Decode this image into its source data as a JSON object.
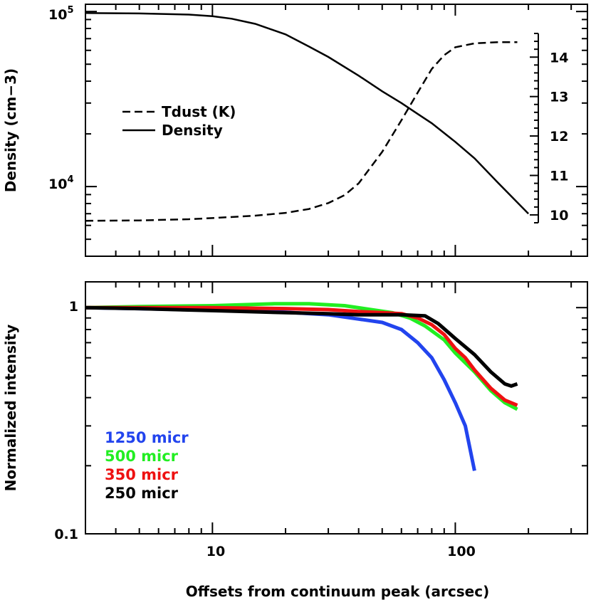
{
  "chart_data": [
    {
      "type": "line",
      "xscale": "log",
      "yscale": "log",
      "xlim": [
        3,
        350
      ],
      "ylim": [
        4000,
        110000
      ],
      "ylabel": "Density (cm−3)",
      "ytick_labels": [
        {
          "base": "10",
          "exp": "4",
          "value": 10000
        },
        {
          "base": "10",
          "exp": "5",
          "value": 100000
        }
      ],
      "right_axis": {
        "ylim": [
          9.8,
          14.6
        ],
        "tick_labels": [
          "10",
          "11",
          "12",
          "13",
          "14"
        ],
        "tick_values": [
          10,
          11,
          12,
          13,
          14
        ]
      },
      "legend": {
        "position": "center-left",
        "entries": [
          {
            "label": "Tdust (K)",
            "style": "dashed"
          },
          {
            "label": "Density",
            "style": "solid"
          }
        ]
      },
      "series": [
        {
          "name": "Density",
          "style": "solid",
          "axis": "left",
          "x": [
            3,
            5,
            8,
            10,
            12,
            15,
            20,
            25,
            30,
            40,
            50,
            60,
            70,
            80,
            100,
            120,
            150,
            200
          ],
          "y": [
            98000,
            97500,
            96000,
            94000,
            91000,
            85000,
            74000,
            63000,
            55000,
            43000,
            35000,
            30000,
            26000,
            23000,
            18000,
            14500,
            10500,
            7000
          ]
        },
        {
          "name": "Tdust (K)",
          "style": "dashed",
          "axis": "right",
          "x": [
            3,
            5,
            8,
            10,
            15,
            20,
            25,
            30,
            35,
            40,
            50,
            60,
            70,
            80,
            90,
            100,
            120,
            150,
            180
          ],
          "y": [
            9.85,
            9.86,
            9.89,
            9.92,
            9.98,
            10.05,
            10.15,
            10.3,
            10.5,
            10.8,
            11.6,
            12.4,
            13.1,
            13.7,
            14.05,
            14.25,
            14.35,
            14.38,
            14.38
          ]
        }
      ]
    },
    {
      "type": "line",
      "xscale": "log",
      "yscale": "log",
      "xlim": [
        3,
        350
      ],
      "ylim": [
        0.1,
        1.3
      ],
      "xlabel": "Offsets from continuum peak (arcsec)",
      "ylabel": "Normalized intensity",
      "xtick_labels": [
        {
          "label": "10",
          "value": 10
        },
        {
          "label": "100",
          "value": 100
        }
      ],
      "ytick_labels": [
        {
          "label": "1",
          "value": 1
        },
        {
          "label": "0.1",
          "value": 0.1
        }
      ],
      "legend": {
        "position": "bottom-left",
        "entries": [
          {
            "label": "1250 micr",
            "color": "#2244ee"
          },
          {
            "label": "500 micr",
            "color": "#22ee22"
          },
          {
            "label": "350 micr",
            "color": "#ee1111"
          },
          {
            "label": "250 micr",
            "color": "#000000"
          }
        ]
      },
      "series": [
        {
          "name": "1250 micr",
          "color": "#2244ee",
          "x": [
            3,
            5,
            10,
            20,
            30,
            40,
            50,
            60,
            70,
            80,
            90,
            100,
            110,
            120
          ],
          "y": [
            1.0,
            0.99,
            0.975,
            0.955,
            0.93,
            0.89,
            0.86,
            0.8,
            0.7,
            0.6,
            0.48,
            0.38,
            0.3,
            0.19
          ]
        },
        {
          "name": "500 micr",
          "color": "#22ee22",
          "x": [
            3,
            5,
            10,
            18,
            25,
            35,
            45,
            55,
            65,
            75,
            90,
            100,
            120,
            140,
            160,
            180
          ],
          "y": [
            1.0,
            1.01,
            1.02,
            1.04,
            1.04,
            1.02,
            0.98,
            0.95,
            0.9,
            0.83,
            0.72,
            0.63,
            0.52,
            0.43,
            0.38,
            0.355
          ]
        },
        {
          "name": "350 micr",
          "color": "#ee1111",
          "x": [
            3,
            5,
            10,
            20,
            30,
            40,
            50,
            60,
            70,
            80,
            90,
            100,
            110,
            120,
            140,
            160,
            180
          ],
          "y": [
            1.0,
            1.0,
            1.0,
            0.99,
            0.98,
            0.96,
            0.95,
            0.94,
            0.9,
            0.84,
            0.76,
            0.66,
            0.6,
            0.53,
            0.44,
            0.39,
            0.37
          ]
        },
        {
          "name": "250 micr",
          "color": "#000000",
          "x": [
            3,
            5,
            10,
            20,
            30,
            40,
            50,
            60,
            75,
            85,
            100,
            120,
            140,
            160,
            170,
            180
          ],
          "y": [
            1.0,
            0.99,
            0.97,
            0.95,
            0.94,
            0.93,
            0.93,
            0.93,
            0.92,
            0.85,
            0.73,
            0.62,
            0.52,
            0.46,
            0.45,
            0.46
          ]
        }
      ]
    }
  ]
}
